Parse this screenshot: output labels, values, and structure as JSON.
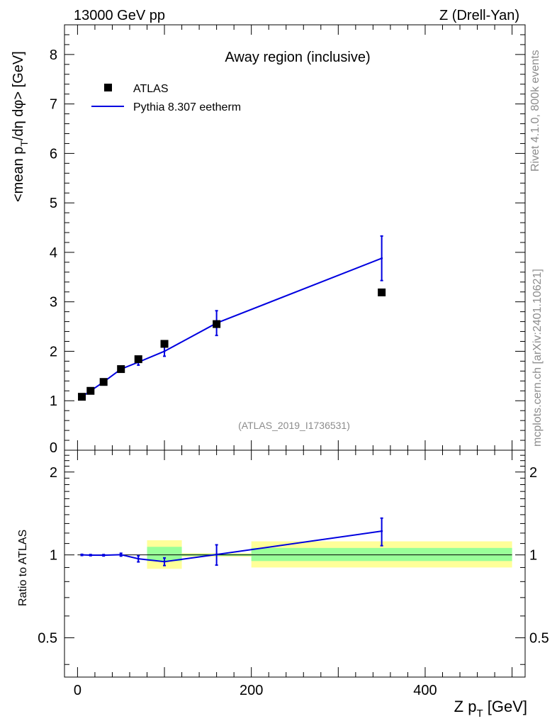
{
  "header": {
    "left": "13000 GeV pp",
    "right": "Z (Drell-Yan)"
  },
  "side_text": {
    "rivet": "Rivet 4.1.0,  800k events",
    "mcplots": "mcplots.cern.ch [arXiv:2401.10621]"
  },
  "colors": {
    "data": "#000000",
    "mc": "#0000e0",
    "band_stat": "#99ff99",
    "band_total": "#ffff99"
  },
  "chart_data": [
    {
      "type": "scatter",
      "title": "Away region (inclusive)",
      "analysis_label": "(ATLAS_2019_I1736531)",
      "ylabel_main": "<mean p",
      "ylabel_sub": "T",
      "ylabel_rest": "/dη dφ> [GeV]",
      "ylim": [
        0,
        8.6
      ],
      "yticks": [
        "1",
        "2",
        "3",
        "4",
        "5",
        "6",
        "7",
        "8"
      ],
      "ytick_values": [
        1,
        2,
        3,
        4,
        5,
        6,
        7,
        8
      ],
      "y0_label": "0",
      "xlim": [
        -15,
        515
      ],
      "legend": {
        "position": "top-left",
        "entries": [
          "ATLAS",
          "Pythia 8.307 eetherm"
        ]
      },
      "series": [
        {
          "name": "ATLAS",
          "x": [
            5,
            15,
            30,
            50,
            70,
            100,
            160,
            350
          ],
          "y": [
            1.08,
            1.2,
            1.38,
            1.64,
            1.84,
            2.15,
            2.55,
            3.19
          ]
        },
        {
          "name": "Pythia 8.307 eetherm",
          "x": [
            5,
            15,
            30,
            50,
            70,
            100,
            160,
            350
          ],
          "y": [
            1.08,
            1.2,
            1.38,
            1.64,
            1.78,
            2.0,
            2.57,
            3.88
          ],
          "err_lo": [
            0.01,
            0.01,
            0.02,
            0.03,
            0.06,
            0.1,
            0.25,
            0.45
          ],
          "err_hi": [
            0.01,
            0.01,
            0.02,
            0.03,
            0.06,
            0.1,
            0.25,
            0.45
          ]
        }
      ]
    },
    {
      "type": "scatter",
      "ylabel": "Ratio to ATLAS",
      "xlabel_main": "Z p",
      "xlabel_sub": "T",
      "xlabel_rest": " [GeV]",
      "xlim": [
        -15,
        515
      ],
      "xticks": [
        "0",
        "200",
        "400"
      ],
      "xtick_values": [
        0,
        200,
        400
      ],
      "ylim_log": [
        0.36,
        2.4
      ],
      "yticks": [
        "0.5",
        "1",
        "2"
      ],
      "ytick_values": [
        0.5,
        1,
        2
      ],
      "bands": [
        {
          "x_low": 80,
          "x_high": 120,
          "total_lo": 0.89,
          "total_hi": 1.13,
          "stat_lo": 0.95,
          "stat_hi": 1.07
        },
        {
          "x_low": 120,
          "x_high": 200,
          "total_lo": 0.985,
          "total_hi": 1.015,
          "stat_lo": 0.992,
          "stat_hi": 1.008
        },
        {
          "x_low": 200,
          "x_high": 500,
          "total_lo": 0.9,
          "total_hi": 1.12,
          "stat_lo": 0.95,
          "stat_hi": 1.06
        }
      ],
      "series": [
        {
          "name": "Pythia 8.307 eetherm / ATLAS",
          "x": [
            5,
            15,
            30,
            50,
            70,
            100,
            160,
            350
          ],
          "y": [
            1.0,
            0.998,
            0.997,
            1.002,
            0.968,
            0.945,
            1.003,
            1.22
          ],
          "err_lo": [
            0.005,
            0.005,
            0.006,
            0.012,
            0.025,
            0.03,
            0.085,
            0.14
          ],
          "err_hi": [
            0.005,
            0.005,
            0.006,
            0.012,
            0.025,
            0.03,
            0.085,
            0.14
          ]
        }
      ]
    }
  ]
}
